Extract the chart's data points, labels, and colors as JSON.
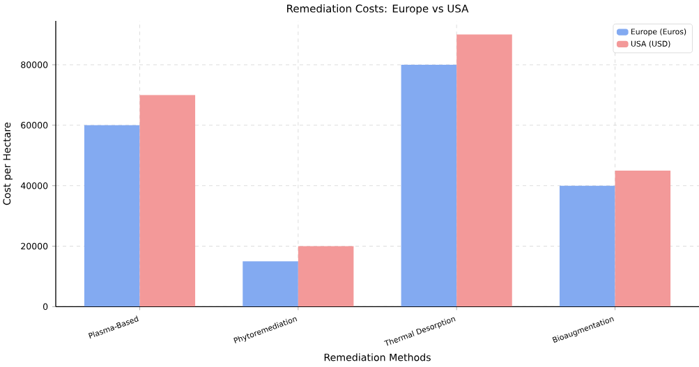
{
  "chart_data": {
    "type": "bar",
    "title": "Remediation Costs: Europe vs USA",
    "xlabel": "Remediation Methods",
    "ylabel": "Cost per Hectare",
    "categories": [
      "Plasma-Based",
      "Phytoremediation",
      "Thermal Desorption",
      "Bioaugmentation"
    ],
    "series": [
      {
        "name": "Europe (Euros)",
        "color": "#83aaf1",
        "values": [
          60000,
          15000,
          80000,
          40000
        ]
      },
      {
        "name": "USA (USD)",
        "color": "#f39999",
        "values": [
          70000,
          20000,
          90000,
          45000
        ]
      }
    ],
    "ylim": [
      0,
      94500
    ],
    "yticks": [
      0,
      20000,
      40000,
      60000,
      80000
    ],
    "grid": true,
    "legend": "top right"
  }
}
